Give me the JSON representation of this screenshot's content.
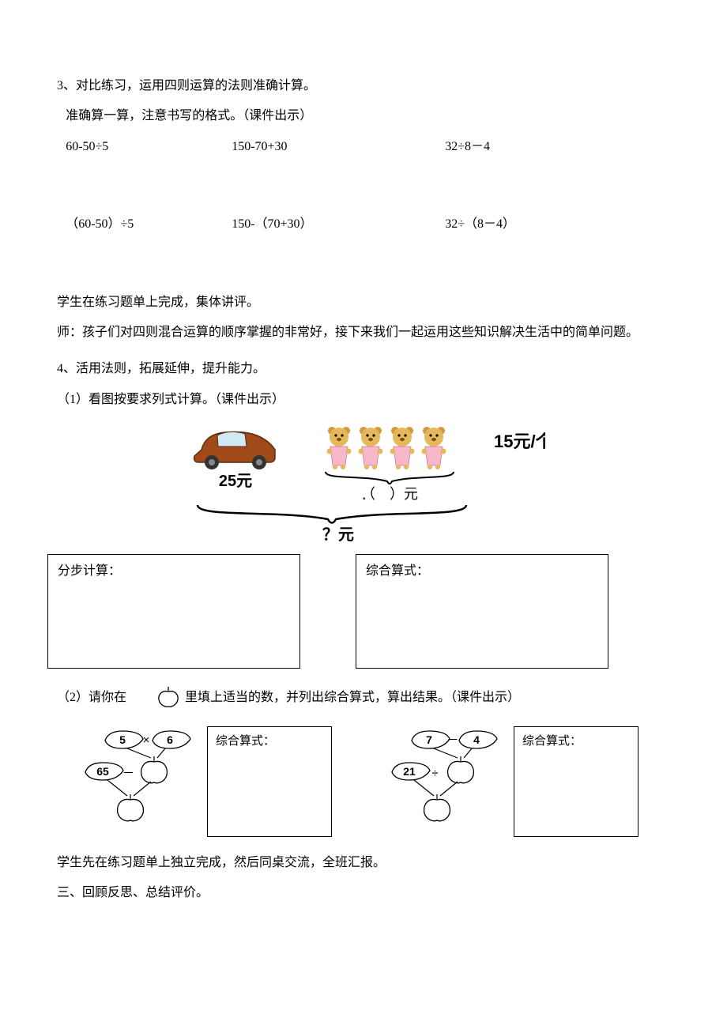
{
  "colors": {
    "text": "#000000",
    "bg": "#ffffff",
    "box_border": "#000000",
    "car_body": "#a04a1a",
    "car_dark": "#5b2b10",
    "car_window": "#cfeaf2",
    "wheel": "#333333",
    "wheel_hub": "#888888",
    "bear_body": "#e6b85c",
    "bear_ear": "#d49a3a",
    "bear_dress": "#f6b8c8",
    "brace": "#000000",
    "leaf_fill": "#ffffff",
    "leaf_stroke": "#000000",
    "apple_fill": "#ffffff",
    "apple_stroke": "#000000"
  },
  "p3": {
    "title": "3、对比练习，运用四则运算的法则准确计算。",
    "sub": "准确算一算，注意书写的格式。（课件出示）",
    "row1": {
      "a": "60-50÷5",
      "b": "150-70+30",
      "c": "32÷8－4"
    },
    "row2": {
      "a": "（60-50）÷5",
      "b": "150-（70+30）",
      "c": "32÷（8－4）"
    }
  },
  "mid1": "学生在练习题单上完成，集体讲评。",
  "mid2": "师：孩子们对四则混合运算的顺序掌握的非常好，接下来我们一起运用这些知识解决生活中的简单问题。",
  "p4": {
    "title": "4、活用法则，拓展延伸，提升能力。",
    "q1": "（1）看图按要求列式计算。（课件出示）",
    "diagram": {
      "price_car": "25元",
      "price_bear_unit": "15元/个",
      "blank_label": "（　）元",
      "total_label": "？元",
      "bear_count": 4
    },
    "box_left_title": "分步计算：",
    "box_right_title": "综合算式：",
    "q2_prefix": "（2）请你在",
    "q2_suffix": "里填上适当的数，并列出综合算式，算出结果。（课件出示）",
    "tree1": {
      "a": "5",
      "op1": "×",
      "b": "6",
      "c": "65",
      "op2": "－"
    },
    "tree2": {
      "a": "7",
      "op1": "－",
      "b": "4",
      "c": "21",
      "op2": "÷"
    },
    "small_box_title": "综合算式："
  },
  "tail1": "学生先在练习题单上独立完成，然后同桌交流，全班汇报。",
  "tail2": "三、回顾反思、总结评价。"
}
